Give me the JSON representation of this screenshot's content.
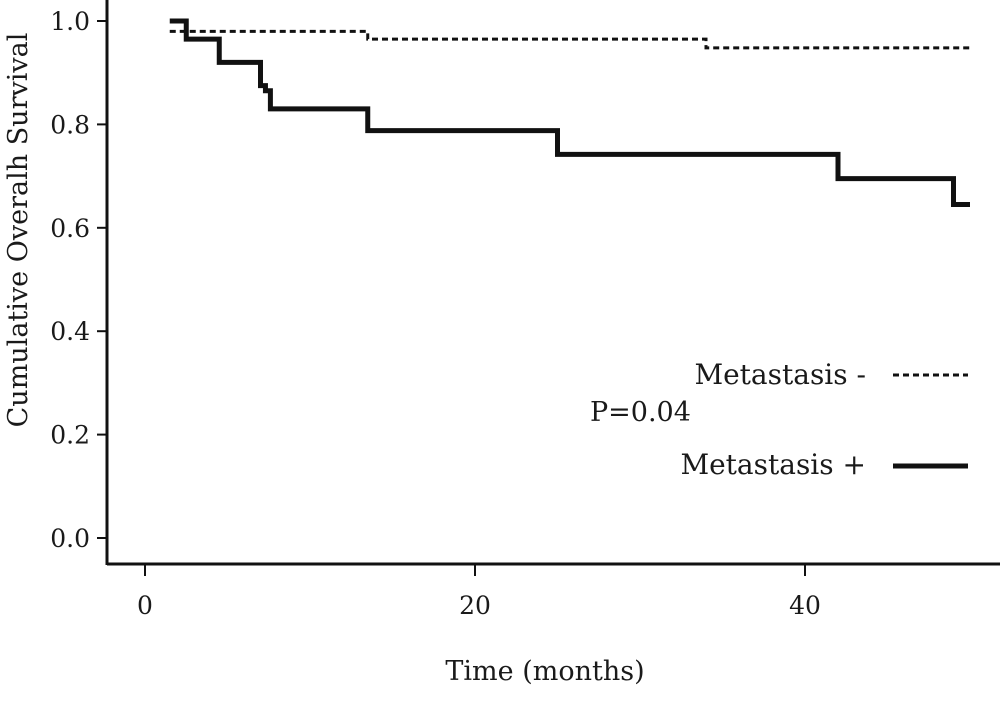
{
  "chart_data": {
    "type": "line",
    "step": true,
    "xlabel": "Time (months)",
    "ylabel": "Cumulative Overalh Survival",
    "xlim": [
      0,
      50
    ],
    "ylim": [
      0.0,
      1.0
    ],
    "x_ticks": [
      0,
      20,
      40
    ],
    "y_ticks": [
      0.0,
      0.2,
      0.4,
      0.6,
      0.8,
      1.0
    ],
    "x_tick_labels": [
      "0",
      "20",
      "40"
    ],
    "y_tick_labels": [
      "0.0",
      "0.2",
      "0.4",
      "0.6",
      "0.8",
      "1.0"
    ],
    "grid": false,
    "legend_position": "right",
    "series": [
      {
        "name": "Metastasis -",
        "style": "dashed",
        "color": "#111111",
        "x": [
          1.5,
          13.5,
          34,
          50
        ],
        "y": [
          0.98,
          0.965,
          0.948,
          0.948
        ]
      },
      {
        "name": "Metastasis +",
        "style": "solid",
        "color": "#111111",
        "x": [
          1.5,
          2.5,
          4.5,
          7,
          7.3,
          7.6,
          13.5,
          25,
          42,
          49,
          50
        ],
        "y": [
          1.0,
          0.965,
          0.92,
          0.875,
          0.865,
          0.83,
          0.788,
          0.742,
          0.695,
          0.645,
          0.645
        ]
      }
    ],
    "annotations": [
      {
        "text": "P=0.04"
      }
    ]
  }
}
